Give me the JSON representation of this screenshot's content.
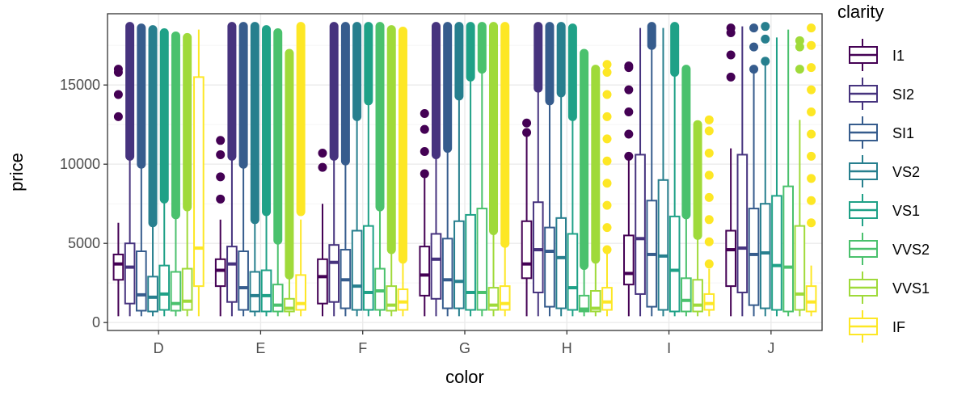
{
  "chart_data": {
    "type": "boxplot",
    "xlabel": "color",
    "ylabel": "price",
    "legend_title": "clarity",
    "legend_position": "right",
    "grid": true,
    "ylim": [
      -500,
      19500
    ],
    "yticks": [
      0,
      5000,
      10000,
      15000
    ],
    "categories": [
      "D",
      "E",
      "F",
      "G",
      "H",
      "I",
      "J"
    ],
    "series_names": [
      "I1",
      "SI2",
      "SI1",
      "VS2",
      "VS1",
      "VVS2",
      "VVS1",
      "IF"
    ],
    "series_colors": [
      "#440154",
      "#46337E",
      "#365C8D",
      "#277F8E",
      "#1FA187",
      "#4AC16D",
      "#9FDA3A",
      "#FDE725"
    ],
    "boxes": {
      "D": [
        {
          "lw": 400,
          "q1": 2700,
          "median": 3700,
          "q3": 4300,
          "uw": 6300,
          "outliers_lo": 13000,
          "outliers_hi": 16000,
          "dense": false
        },
        {
          "lw": 400,
          "q1": 1200,
          "median": 3500,
          "q3": 5000,
          "uw": 10500,
          "outliers_lo": 10500,
          "outliers_hi": 18700,
          "dense": true
        },
        {
          "lw": 400,
          "q1": 750,
          "median": 1750,
          "q3": 4500,
          "uw": 10000,
          "outliers_lo": 10000,
          "outliers_hi": 18600,
          "dense": true
        },
        {
          "lw": 400,
          "q1": 700,
          "median": 1600,
          "q3": 2900,
          "uw": 6300,
          "outliers_lo": 6300,
          "outliers_hi": 18500,
          "dense": true
        },
        {
          "lw": 400,
          "q1": 800,
          "median": 1800,
          "q3": 3600,
          "uw": 7800,
          "outliers_lo": 7800,
          "outliers_hi": 18300,
          "dense": true
        },
        {
          "lw": 400,
          "q1": 750,
          "median": 1200,
          "q3": 3200,
          "uw": 6800,
          "outliers_lo": 6800,
          "outliers_hi": 18100,
          "dense": true
        },
        {
          "lw": 400,
          "q1": 800,
          "median": 1350,
          "q3": 3400,
          "uw": 7300,
          "outliers_lo": 7300,
          "outliers_hi": 18000,
          "dense": true
        },
        {
          "lw": 400,
          "q1": 2300,
          "median": 4700,
          "q3": 15500,
          "uw": 18500,
          "outliers_lo": 0,
          "outliers_hi": 0,
          "dense": false
        }
      ],
      "E": [
        {
          "lw": 400,
          "q1": 2300,
          "median": 3300,
          "q3": 4000,
          "uw": 6500,
          "outliers_lo": 7800,
          "outliers_hi": 11500,
          "dense": false
        },
        {
          "lw": 400,
          "q1": 1300,
          "median": 3700,
          "q3": 4800,
          "uw": 10500,
          "outliers_lo": 10500,
          "outliers_hi": 18700,
          "dense": true
        },
        {
          "lw": 400,
          "q1": 800,
          "median": 2200,
          "q3": 4500,
          "uw": 10000,
          "outliers_lo": 10000,
          "outliers_hi": 18700,
          "dense": true
        },
        {
          "lw": 400,
          "q1": 700,
          "median": 1700,
          "q3": 3200,
          "uw": 6500,
          "outliers_lo": 6500,
          "outliers_hi": 18700,
          "dense": true
        },
        {
          "lw": 400,
          "q1": 700,
          "median": 1700,
          "q3": 3300,
          "uw": 7000,
          "outliers_lo": 7000,
          "outliers_hi": 18500,
          "dense": true
        },
        {
          "lw": 400,
          "q1": 700,
          "median": 1100,
          "q3": 2400,
          "uw": 5200,
          "outliers_lo": 5200,
          "outliers_hi": 18300,
          "dense": true
        },
        {
          "lw": 400,
          "q1": 700,
          "median": 900,
          "q3": 1500,
          "uw": 3000,
          "outliers_lo": 3000,
          "outliers_hi": 17000,
          "dense": true
        },
        {
          "lw": 400,
          "q1": 800,
          "median": 1200,
          "q3": 3000,
          "uw": 6500,
          "outliers_lo": 7000,
          "outliers_hi": 18700,
          "dense": true
        }
      ],
      "F": [
        {
          "lw": 400,
          "q1": 1200,
          "median": 2900,
          "q3": 4000,
          "uw": 7500,
          "outliers_lo": 9800,
          "outliers_hi": 10700,
          "dense": false
        },
        {
          "lw": 400,
          "q1": 1300,
          "median": 3800,
          "q3": 4900,
          "uw": 10500,
          "outliers_lo": 10500,
          "outliers_hi": 18700,
          "dense": true
        },
        {
          "lw": 400,
          "q1": 900,
          "median": 2700,
          "q3": 4600,
          "uw": 10200,
          "outliers_lo": 10200,
          "outliers_hi": 18700,
          "dense": true
        },
        {
          "lw": 400,
          "q1": 800,
          "median": 2300,
          "q3": 5800,
          "uw": 13000,
          "outliers_lo": 13000,
          "outliers_hi": 18700,
          "dense": true
        },
        {
          "lw": 400,
          "q1": 800,
          "median": 1900,
          "q3": 6100,
          "uw": 14000,
          "outliers_lo": 14000,
          "outliers_hi": 18700,
          "dense": true
        },
        {
          "lw": 400,
          "q1": 800,
          "median": 2000,
          "q3": 3400,
          "uw": 7300,
          "outliers_lo": 7300,
          "outliers_hi": 18700,
          "dense": true
        },
        {
          "lw": 400,
          "q1": 750,
          "median": 1100,
          "q3": 2300,
          "uw": 4600,
          "outliers_lo": 4600,
          "outliers_hi": 18500,
          "dense": true
        },
        {
          "lw": 400,
          "q1": 800,
          "median": 1300,
          "q3": 2100,
          "uw": 4000,
          "outliers_lo": 4000,
          "outliers_hi": 18400,
          "dense": true
        }
      ],
      "G": [
        {
          "lw": 400,
          "q1": 1700,
          "median": 3000,
          "q3": 4800,
          "uw": 9400,
          "outliers_lo": 9400,
          "outliers_hi": 13200,
          "dense": false
        },
        {
          "lw": 400,
          "q1": 1500,
          "median": 4000,
          "q3": 5600,
          "uw": 10600,
          "outliers_lo": 10600,
          "outliers_hi": 18700,
          "dense": true
        },
        {
          "lw": 400,
          "q1": 900,
          "median": 2700,
          "q3": 5300,
          "uw": 11000,
          "outliers_lo": 11000,
          "outliers_hi": 18700,
          "dense": true
        },
        {
          "lw": 400,
          "q1": 900,
          "median": 2600,
          "q3": 6400,
          "uw": 14300,
          "outliers_lo": 14300,
          "outliers_hi": 18700,
          "dense": true
        },
        {
          "lw": 400,
          "q1": 800,
          "median": 1900,
          "q3": 6800,
          "uw": 15500,
          "outliers_lo": 15500,
          "outliers_hi": 18700,
          "dense": true
        },
        {
          "lw": 400,
          "q1": 800,
          "median": 1900,
          "q3": 7200,
          "uw": 16000,
          "outliers_lo": 16000,
          "outliers_hi": 18700,
          "dense": true
        },
        {
          "lw": 400,
          "q1": 800,
          "median": 1100,
          "q3": 2200,
          "uw": 5800,
          "outliers_lo": 5800,
          "outliers_hi": 18700,
          "dense": true
        },
        {
          "lw": 400,
          "q1": 800,
          "median": 1200,
          "q3": 2300,
          "uw": 5000,
          "outliers_lo": 5000,
          "outliers_hi": 18700,
          "dense": true
        }
      ],
      "H": [
        {
          "lw": 400,
          "q1": 2800,
          "median": 3700,
          "q3": 6400,
          "uw": 12000,
          "outliers_lo": 12000,
          "outliers_hi": 12600,
          "dense": false
        },
        {
          "lw": 400,
          "q1": 1900,
          "median": 4600,
          "q3": 7600,
          "uw": 14800,
          "outliers_lo": 14800,
          "outliers_hi": 18700,
          "dense": true
        },
        {
          "lw": 400,
          "q1": 1000,
          "median": 4500,
          "q3": 6000,
          "uw": 14000,
          "outliers_lo": 14000,
          "outliers_hi": 18700,
          "dense": true
        },
        {
          "lw": 400,
          "q1": 900,
          "median": 4100,
          "q3": 6600,
          "uw": 14500,
          "outliers_lo": 14500,
          "outliers_hi": 18700,
          "dense": true
        },
        {
          "lw": 400,
          "q1": 800,
          "median": 2200,
          "q3": 5600,
          "uw": 13000,
          "outliers_lo": 13000,
          "outliers_hi": 18600,
          "dense": true
        },
        {
          "lw": 400,
          "q1": 700,
          "median": 850,
          "q3": 1700,
          "uw": 3600,
          "outliers_lo": 3600,
          "outliers_hi": 17000,
          "dense": true
        },
        {
          "lw": 400,
          "q1": 700,
          "median": 900,
          "q3": 2000,
          "uw": 4000,
          "outliers_lo": 4000,
          "outliers_hi": 16000,
          "dense": true
        },
        {
          "lw": 400,
          "q1": 800,
          "median": 1300,
          "q3": 2200,
          "uw": 4400,
          "outliers_lo": 4600,
          "outliers_hi": 16300,
          "dense": false
        }
      ],
      "I": [
        {
          "lw": 400,
          "q1": 2400,
          "median": 3100,
          "q3": 5500,
          "uw": 10500,
          "outliers_lo": 10500,
          "outliers_hi": 16200,
          "dense": false
        },
        {
          "lw": 400,
          "q1": 1800,
          "median": 5300,
          "q3": 10600,
          "uw": 18600,
          "outliers_lo": 0,
          "outliers_hi": 0,
          "dense": false
        },
        {
          "lw": 400,
          "q1": 1000,
          "median": 4300,
          "q3": 7700,
          "uw": 17500,
          "outliers_lo": 17500,
          "outliers_hi": 18700,
          "dense": true
        },
        {
          "lw": 400,
          "q1": 800,
          "median": 4200,
          "q3": 9000,
          "uw": 18600,
          "outliers_lo": 0,
          "outliers_hi": 0,
          "dense": false
        },
        {
          "lw": 400,
          "q1": 700,
          "median": 3300,
          "q3": 6700,
          "uw": 15800,
          "outliers_lo": 15800,
          "outliers_hi": 18700,
          "dense": true
        },
        {
          "lw": 400,
          "q1": 700,
          "median": 1400,
          "q3": 2800,
          "uw": 6800,
          "outliers_lo": 6800,
          "outliers_hi": 16000,
          "dense": true
        },
        {
          "lw": 400,
          "q1": 700,
          "median": 1100,
          "q3": 2700,
          "uw": 5500,
          "outliers_lo": 5500,
          "outliers_hi": 12500,
          "dense": true
        },
        {
          "lw": 400,
          "q1": 800,
          "median": 1200,
          "q3": 1800,
          "uw": 3400,
          "outliers_lo": 3700,
          "outliers_hi": 12800,
          "dense": false
        }
      ],
      "J": [
        {
          "lw": 400,
          "q1": 2300,
          "median": 4600,
          "q3": 5800,
          "uw": 11000,
          "outliers_lo": 15500,
          "outliers_hi": 18600,
          "dense": false
        },
        {
          "lw": 400,
          "q1": 1900,
          "median": 4700,
          "q3": 10600,
          "uw": 18700,
          "outliers_lo": 0,
          "outliers_hi": 0,
          "dense": false
        },
        {
          "lw": 400,
          "q1": 1100,
          "median": 4300,
          "q3": 7200,
          "uw": 16000,
          "outliers_lo": 16000,
          "outliers_hi": 18600,
          "dense": false
        },
        {
          "lw": 400,
          "q1": 900,
          "median": 4400,
          "q3": 7500,
          "uw": 16500,
          "outliers_lo": 16500,
          "outliers_hi": 18700,
          "dense": false
        },
        {
          "lw": 400,
          "q1": 800,
          "median": 3600,
          "q3": 8000,
          "uw": 18000,
          "outliers_lo": 0,
          "outliers_hi": 0,
          "dense": false
        },
        {
          "lw": 400,
          "q1": 700,
          "median": 3500,
          "q3": 8600,
          "uw": 18500,
          "outliers_lo": 0,
          "outliers_hi": 0,
          "dense": false
        },
        {
          "lw": 400,
          "q1": 800,
          "median": 1800,
          "q3": 6100,
          "uw": 12800,
          "outliers_lo": 16000,
          "outliers_hi": 17800,
          "dense": false
        },
        {
          "lw": 400,
          "q1": 700,
          "median": 1300,
          "q3": 2300,
          "uw": 3600,
          "outliers_lo": 6300,
          "outliers_hi": 18600,
          "dense": false
        }
      ]
    }
  }
}
